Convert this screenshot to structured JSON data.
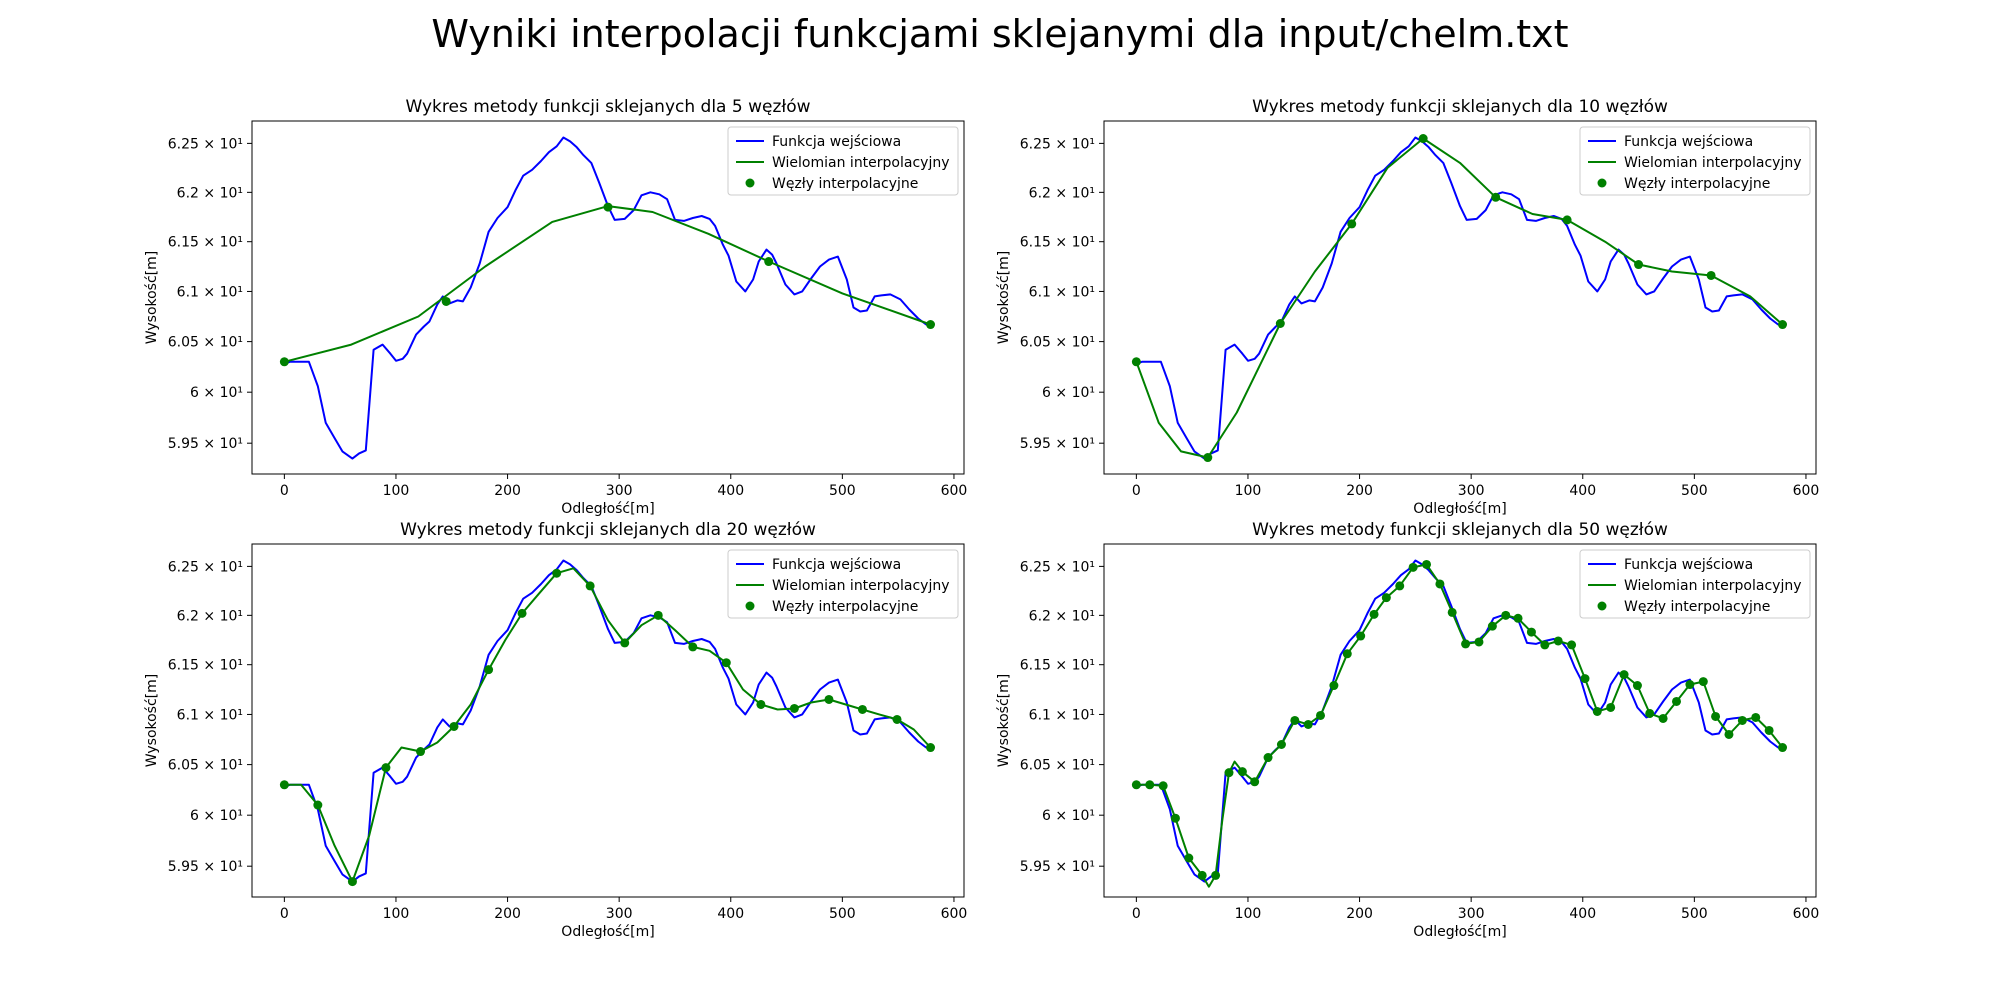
{
  "figure": {
    "title": "Wyniki interpolacji funkcjami sklejanymi dla input/chelm.txt"
  },
  "colors": {
    "input": "#0000ff",
    "interp": "#008000",
    "nodes": "#008000"
  },
  "legend": {
    "input": "Funkcja wejściowa",
    "interp": "Wielomian interpolacyjny",
    "nodes": "Węzły interpolacyjne"
  },
  "axes_common": {
    "xlabel": "Odległość[m]",
    "ylabel": "Wysokość[m]",
    "xticks": [
      "0",
      "100",
      "200",
      "300",
      "400",
      "500",
      "600"
    ],
    "yticks": [
      "5.95 × 10¹",
      "6 × 10¹",
      "6.05 × 10¹",
      "6.1 × 10¹",
      "6.15 × 10¹",
      "6.2 × 10¹",
      "6.25 × 10¹"
    ]
  },
  "chart_data": [
    {
      "type": "line",
      "title": "Wykres metody funkcji sklejanych dla 5 węzłów",
      "xlabel": "Odległość[m]",
      "ylabel": "Wysokość[m]",
      "xlim": [
        -29,
        609
      ],
      "ylim": [
        59.2,
        62.73
      ],
      "yscale": "log",
      "grid": false,
      "legend_position": "top-right",
      "nodes": {
        "x": [
          0,
          145,
          290,
          434,
          579
        ],
        "y": [
          60.3,
          60.9,
          61.85,
          61.3,
          60.67
        ]
      },
      "interp": {
        "x": [
          0,
          60,
          120,
          180,
          240,
          290,
          330,
          380,
          434,
          500,
          579
        ],
        "y": [
          60.3,
          60.47,
          60.75,
          61.25,
          61.7,
          61.86,
          61.8,
          61.58,
          61.3,
          60.98,
          60.67
        ]
      }
    },
    {
      "type": "line",
      "title": "Wykres metody funkcji sklejanych dla 10 węzłów",
      "xlabel": "Odległość[m]",
      "ylabel": "Wysokość[m]",
      "xlim": [
        -29,
        609
      ],
      "ylim": [
        59.2,
        62.73
      ],
      "yscale": "log",
      "grid": false,
      "legend_position": "top-right",
      "nodes": {
        "x": [
          0,
          64,
          129,
          193,
          257,
          322,
          386,
          450,
          515,
          579
        ],
        "y": [
          60.3,
          59.36,
          60.68,
          61.68,
          62.55,
          61.95,
          61.72,
          61.27,
          61.16,
          60.67
        ]
      },
      "interp": {
        "x": [
          0,
          20,
          40,
          64,
          90,
          129,
          160,
          193,
          225,
          257,
          290,
          322,
          355,
          386,
          420,
          450,
          480,
          515,
          550,
          579
        ],
        "y": [
          60.3,
          59.7,
          59.42,
          59.36,
          59.8,
          60.68,
          61.2,
          61.68,
          62.25,
          62.55,
          62.3,
          61.95,
          61.78,
          61.72,
          61.5,
          61.27,
          61.2,
          61.16,
          60.95,
          60.67
        ]
      }
    },
    {
      "type": "line",
      "title": "Wykres metody funkcji sklejanych dla 20 węzłów",
      "xlabel": "Odległość[m]",
      "ylabel": "Wysokość[m]",
      "xlim": [
        -29,
        609
      ],
      "ylim": [
        59.2,
        62.73
      ],
      "yscale": "log",
      "grid": false,
      "legend_position": "top-right",
      "nodes": {
        "x": [
          0,
          30,
          61,
          91,
          122,
          152,
          183,
          213,
          244,
          274,
          305,
          335,
          366,
          396,
          427,
          457,
          488,
          518,
          549,
          579
        ],
        "y": [
          60.3,
          60.1,
          59.35,
          60.47,
          60.63,
          60.88,
          61.45,
          62.02,
          62.43,
          62.3,
          61.72,
          62.0,
          61.68,
          61.52,
          61.1,
          61.06,
          61.15,
          61.05,
          60.95,
          60.67
        ]
      },
      "interp": {
        "x": [
          0,
          15,
          30,
          45,
          61,
          76,
          91,
          105,
          122,
          137,
          152,
          167,
          183,
          198,
          213,
          228,
          244,
          259,
          274,
          290,
          305,
          320,
          335,
          350,
          366,
          381,
          396,
          411,
          427,
          442,
          457,
          472,
          488,
          503,
          518,
          533,
          549,
          564,
          579
        ],
        "y": [
          60.3,
          60.3,
          60.1,
          59.7,
          59.35,
          59.8,
          60.47,
          60.67,
          60.63,
          60.72,
          60.88,
          61.1,
          61.45,
          61.75,
          62.02,
          62.22,
          62.43,
          62.48,
          62.3,
          61.95,
          61.72,
          61.9,
          62.0,
          61.85,
          61.68,
          61.64,
          61.52,
          61.25,
          61.1,
          61.05,
          61.06,
          61.12,
          61.15,
          61.1,
          61.05,
          61.0,
          60.95,
          60.85,
          60.67
        ]
      }
    },
    {
      "type": "line",
      "title": "Wykres metody funkcji sklejanych dla 50 węzłów",
      "xlabel": "Odległość[m]",
      "ylabel": "Wysokość[m]",
      "xlim": [
        -29,
        609
      ],
      "ylim": [
        59.2,
        62.73
      ],
      "yscale": "log",
      "grid": false,
      "legend_position": "top-right",
      "nodes": {
        "x": [
          0,
          12,
          24,
          35,
          47,
          59,
          71,
          83,
          95,
          106,
          118,
          130,
          142,
          154,
          165,
          177,
          189,
          201,
          213,
          224,
          236,
          248,
          260,
          272,
          283,
          295,
          307,
          319,
          331,
          342,
          354,
          366,
          378,
          390,
          402,
          413,
          425,
          437,
          449,
          460,
          472,
          484,
          496,
          508,
          519,
          531,
          543,
          555,
          567,
          579
        ],
        "y": [
          60.3,
          60.3,
          60.29,
          59.97,
          59.58,
          59.41,
          59.41,
          60.42,
          60.43,
          60.33,
          60.57,
          60.7,
          60.94,
          60.9,
          60.99,
          61.29,
          61.61,
          61.79,
          62.01,
          62.18,
          62.3,
          62.49,
          62.52,
          62.32,
          62.03,
          61.71,
          61.73,
          61.89,
          62.0,
          61.97,
          61.83,
          61.7,
          61.74,
          61.7,
          61.36,
          61.03,
          61.07,
          61.4,
          61.29,
          61.01,
          60.96,
          61.13,
          61.3,
          61.33,
          60.98,
          60.8,
          60.94,
          60.97,
          60.84,
          60.67
        ]
      },
      "interp": {
        "x": [
          0,
          12,
          24,
          35,
          47,
          59,
          65,
          71,
          77,
          83,
          88,
          95,
          106,
          118,
          130,
          142,
          154,
          165,
          177,
          189,
          201,
          213,
          224,
          236,
          248,
          260,
          272,
          283,
          295,
          307,
          319,
          331,
          342,
          354,
          366,
          378,
          390,
          402,
          413,
          425,
          437,
          449,
          460,
          472,
          484,
          496,
          508,
          519,
          531,
          543,
          555,
          567,
          579
        ],
        "y": [
          60.3,
          60.3,
          60.29,
          59.97,
          59.58,
          59.41,
          59.3,
          59.41,
          59.95,
          60.42,
          60.53,
          60.43,
          60.33,
          60.57,
          60.7,
          60.94,
          60.9,
          60.99,
          61.29,
          61.61,
          61.79,
          62.01,
          62.18,
          62.3,
          62.49,
          62.52,
          62.32,
          62.03,
          61.71,
          61.73,
          61.89,
          62.0,
          61.97,
          61.83,
          61.7,
          61.74,
          61.7,
          61.36,
          61.03,
          61.07,
          61.4,
          61.29,
          61.01,
          60.96,
          61.13,
          61.3,
          61.33,
          60.98,
          60.8,
          60.94,
          60.97,
          60.84,
          60.67
        ]
      }
    }
  ],
  "input_function": {
    "x": [
      0,
      5,
      10,
      15,
      22,
      30,
      37,
      45,
      52,
      61,
      67,
      73,
      80,
      88,
      95,
      100,
      106,
      110,
      118,
      125,
      130,
      137,
      142,
      148,
      155,
      160,
      167,
      175,
      183,
      191,
      200,
      207,
      214,
      222,
      230,
      237,
      244,
      250,
      256,
      262,
      268,
      275,
      282,
      290,
      296,
      305,
      313,
      320,
      328,
      336,
      343,
      350,
      358,
      366,
      374,
      381,
      386,
      393,
      398,
      405,
      413,
      420,
      425,
      432,
      437,
      441,
      449,
      457,
      464,
      472,
      480,
      488,
      496,
      504,
      510,
      516,
      522,
      529,
      535,
      543,
      552,
      560,
      568,
      575,
      579
    ],
    "y": [
      60.28,
      60.3,
      60.3,
      60.3,
      60.3,
      60.06,
      59.7,
      59.55,
      59.42,
      59.35,
      59.4,
      59.43,
      60.42,
      60.47,
      60.38,
      60.31,
      60.33,
      60.38,
      60.57,
      60.65,
      60.7,
      60.87,
      60.95,
      60.88,
      60.91,
      60.9,
      61.04,
      61.28,
      61.6,
      61.74,
      61.85,
      62.02,
      62.17,
      62.23,
      62.32,
      62.41,
      62.47,
      62.56,
      62.52,
      62.46,
      62.38,
      62.3,
      62.1,
      61.86,
      61.72,
      61.73,
      61.82,
      61.97,
      62.0,
      61.98,
      61.93,
      61.72,
      61.71,
      61.74,
      61.76,
      61.73,
      61.66,
      61.47,
      61.36,
      61.1,
      61.0,
      61.12,
      61.3,
      61.42,
      61.37,
      61.28,
      61.07,
      60.97,
      61.0,
      61.13,
      61.25,
      61.32,
      61.35,
      61.12,
      60.84,
      60.8,
      60.81,
      60.95,
      60.96,
      60.97,
      60.92,
      60.82,
      60.73,
      60.67,
      60.67
    ]
  }
}
